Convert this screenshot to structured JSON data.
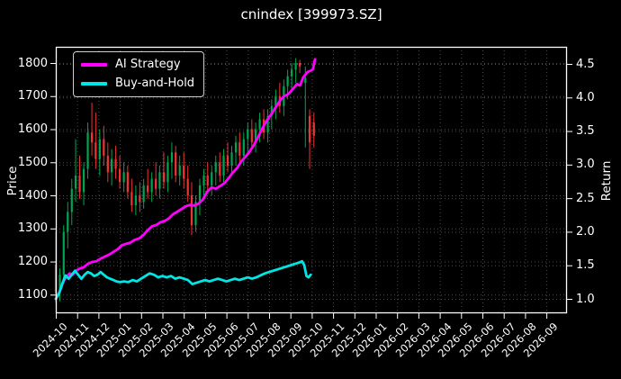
{
  "title": "cnindex [399973.SZ]",
  "legend": [
    {
      "label": "AI Strategy",
      "color": "#ff00ff"
    },
    {
      "label": "Buy-and-Hold",
      "color": "#00e6e6"
    }
  ],
  "left_axis": {
    "label": "Price",
    "ticks": [
      1100,
      1200,
      1300,
      1400,
      1500,
      1600,
      1700,
      1800
    ]
  },
  "right_axis": {
    "label": "Return",
    "ticks": [
      1.0,
      1.5,
      2.0,
      2.5,
      3.0,
      3.5,
      4.0,
      4.5
    ]
  },
  "x_axis": {
    "ticks": [
      "2024-10",
      "2024-11",
      "2024-12",
      "2025-01",
      "2025-02",
      "2025-03",
      "2025-04",
      "2025-05",
      "2025-06",
      "2025-07",
      "2025-08",
      "2025-09",
      "2025-10",
      "2025-11",
      "2025-12",
      "2026-01",
      "2026-02",
      "2026-03",
      "2026-04",
      "2026-05",
      "2026-06",
      "2026-07",
      "2026-08",
      "2026-09"
    ],
    "rotation_deg": 45
  },
  "chart_data": {
    "type": "candlestick+line",
    "title": "cnindex [399973.SZ]",
    "x_unit": "months since 2024-10",
    "price_axis": {
      "label": "Price",
      "ylim": [
        1043,
        1849
      ],
      "grid": true
    },
    "return_axis": {
      "label": "Return",
      "ylim": [
        0.79,
        4.76
      ],
      "grid": true
    },
    "legend_position": "upper left",
    "colors": {
      "up": "#00a550",
      "down": "#f03333",
      "grid": "#4d4d4d",
      "spine": "#ffffff",
      "background": "#000000"
    },
    "candles_ohlc": [
      [
        0.0,
        1190,
        1290,
        1075,
        1105
      ],
      [
        0.19,
        1105,
        1180,
        1080,
        1160
      ],
      [
        0.37,
        1160,
        1310,
        1140,
        1290
      ],
      [
        0.56,
        1290,
        1380,
        1240,
        1350
      ],
      [
        0.75,
        1350,
        1450,
        1310,
        1420
      ],
      [
        0.93,
        1420,
        1570,
        1380,
        1460
      ],
      [
        1.12,
        1460,
        1520,
        1390,
        1410
      ],
      [
        1.31,
        1410,
        1500,
        1370,
        1480
      ],
      [
        1.5,
        1480,
        1620,
        1450,
        1590
      ],
      [
        1.69,
        1590,
        1680,
        1520,
        1560
      ],
      [
        1.87,
        1560,
        1650,
        1480,
        1510
      ],
      [
        2.06,
        1510,
        1600,
        1460,
        1570
      ],
      [
        2.25,
        1570,
        1610,
        1490,
        1520
      ],
      [
        2.44,
        1520,
        1560,
        1440,
        1470
      ],
      [
        2.62,
        1470,
        1540,
        1430,
        1510
      ],
      [
        2.81,
        1510,
        1550,
        1450,
        1480
      ],
      [
        3.0,
        1480,
        1520,
        1420,
        1440
      ],
      [
        3.19,
        1440,
        1500,
        1410,
        1470
      ],
      [
        3.37,
        1470,
        1490,
        1390,
        1410
      ],
      [
        3.56,
        1410,
        1450,
        1350,
        1370
      ],
      [
        3.75,
        1370,
        1430,
        1340,
        1400
      ],
      [
        3.94,
        1400,
        1440,
        1350,
        1380
      ],
      [
        4.12,
        1380,
        1450,
        1360,
        1430
      ],
      [
        4.31,
        1430,
        1480,
        1390,
        1410
      ],
      [
        4.5,
        1410,
        1470,
        1380,
        1450
      ],
      [
        4.69,
        1450,
        1500,
        1400,
        1420
      ],
      [
        4.87,
        1420,
        1490,
        1390,
        1470
      ],
      [
        5.06,
        1470,
        1530,
        1420,
        1440
      ],
      [
        5.25,
        1440,
        1520,
        1410,
        1500
      ],
      [
        5.44,
        1500,
        1560,
        1450,
        1530
      ],
      [
        5.62,
        1530,
        1550,
        1440,
        1460
      ],
      [
        5.81,
        1460,
        1520,
        1430,
        1490
      ],
      [
        6.0,
        1490,
        1530,
        1420,
        1450
      ],
      [
        6.19,
        1450,
        1490,
        1380,
        1400
      ],
      [
        6.37,
        1400,
        1440,
        1280,
        1310
      ],
      [
        6.56,
        1310,
        1400,
        1290,
        1380
      ],
      [
        6.75,
        1380,
        1450,
        1340,
        1430
      ],
      [
        6.94,
        1430,
        1480,
        1390,
        1460
      ],
      [
        7.12,
        1460,
        1500,
        1410,
        1430
      ],
      [
        7.31,
        1430,
        1490,
        1400,
        1470
      ],
      [
        7.5,
        1470,
        1520,
        1430,
        1500
      ],
      [
        7.69,
        1500,
        1530,
        1440,
        1460
      ],
      [
        7.87,
        1460,
        1540,
        1440,
        1520
      ],
      [
        8.06,
        1520,
        1560,
        1470,
        1490
      ],
      [
        8.25,
        1490,
        1550,
        1460,
        1530
      ],
      [
        8.44,
        1530,
        1580,
        1490,
        1560
      ],
      [
        8.62,
        1560,
        1590,
        1500,
        1520
      ],
      [
        8.81,
        1520,
        1590,
        1490,
        1570
      ],
      [
        9.0,
        1570,
        1620,
        1520,
        1600
      ],
      [
        9.19,
        1600,
        1630,
        1540,
        1560
      ],
      [
        9.37,
        1560,
        1620,
        1530,
        1600
      ],
      [
        9.56,
        1600,
        1650,
        1560,
        1630
      ],
      [
        9.75,
        1630,
        1660,
        1570,
        1590
      ],
      [
        9.94,
        1590,
        1660,
        1560,
        1640
      ],
      [
        10.12,
        1640,
        1690,
        1600,
        1670
      ],
      [
        10.31,
        1670,
        1720,
        1630,
        1700
      ],
      [
        10.5,
        1700,
        1740,
        1650,
        1670
      ],
      [
        10.69,
        1670,
        1750,
        1640,
        1730
      ],
      [
        10.87,
        1730,
        1780,
        1690,
        1760
      ],
      [
        11.06,
        1760,
        1800,
        1710,
        1780
      ],
      [
        11.25,
        1780,
        1815,
        1740,
        1800
      ],
      [
        11.44,
        1800,
        1810,
        1770,
        1790
      ],
      [
        11.7,
        1740,
        1790,
        1545,
        1755
      ],
      [
        11.9,
        1640,
        1660,
        1480,
        1560
      ],
      [
        12.1,
        1620,
        1650,
        1545,
        1580
      ]
    ],
    "series": [
      {
        "name": "AI Strategy",
        "color": "#ff00ff",
        "axis": "return",
        "points": [
          [
            0,
            1.0
          ],
          [
            0.2,
            1.12
          ],
          [
            0.35,
            1.25
          ],
          [
            0.5,
            1.33
          ],
          [
            0.65,
            1.38
          ],
          [
            0.8,
            1.36
          ],
          [
            0.95,
            1.42
          ],
          [
            1.1,
            1.45
          ],
          [
            1.3,
            1.47
          ],
          [
            1.5,
            1.52
          ],
          [
            1.7,
            1.55
          ],
          [
            1.9,
            1.56
          ],
          [
            2.1,
            1.6
          ],
          [
            2.3,
            1.63
          ],
          [
            2.5,
            1.66
          ],
          [
            2.7,
            1.7
          ],
          [
            2.9,
            1.74
          ],
          [
            3.1,
            1.8
          ],
          [
            3.3,
            1.82
          ],
          [
            3.5,
            1.84
          ],
          [
            3.7,
            1.88
          ],
          [
            3.9,
            1.9
          ],
          [
            4.1,
            1.95
          ],
          [
            4.3,
            2.02
          ],
          [
            4.5,
            2.08
          ],
          [
            4.7,
            2.1
          ],
          [
            4.9,
            2.14
          ],
          [
            5.1,
            2.16
          ],
          [
            5.3,
            2.2
          ],
          [
            5.5,
            2.26
          ],
          [
            5.7,
            2.3
          ],
          [
            5.9,
            2.34
          ],
          [
            6.1,
            2.38
          ],
          [
            6.3,
            2.4
          ],
          [
            6.5,
            2.39
          ],
          [
            6.7,
            2.42
          ],
          [
            6.9,
            2.48
          ],
          [
            7.1,
            2.6
          ],
          [
            7.3,
            2.66
          ],
          [
            7.5,
            2.64
          ],
          [
            7.7,
            2.68
          ],
          [
            7.9,
            2.72
          ],
          [
            8.1,
            2.8
          ],
          [
            8.3,
            2.88
          ],
          [
            8.5,
            2.95
          ],
          [
            8.7,
            3.05
          ],
          [
            8.9,
            3.12
          ],
          [
            9.1,
            3.2
          ],
          [
            9.3,
            3.3
          ],
          [
            9.5,
            3.42
          ],
          [
            9.7,
            3.55
          ],
          [
            9.9,
            3.66
          ],
          [
            10.1,
            3.75
          ],
          [
            10.3,
            3.85
          ],
          [
            10.5,
            3.95
          ],
          [
            10.7,
            4.02
          ],
          [
            10.9,
            4.05
          ],
          [
            11.1,
            4.12
          ],
          [
            11.3,
            4.2
          ],
          [
            11.45,
            4.18
          ],
          [
            11.6,
            4.3
          ],
          [
            11.8,
            4.38
          ],
          [
            11.95,
            4.4
          ],
          [
            12.05,
            4.42
          ],
          [
            12.15,
            4.57
          ]
        ]
      },
      {
        "name": "Buy-and-Hold",
        "color": "#00e6e6",
        "axis": "return",
        "points": [
          [
            0,
            1.0
          ],
          [
            0.15,
            1.08
          ],
          [
            0.3,
            1.22
          ],
          [
            0.45,
            1.35
          ],
          [
            0.6,
            1.3
          ],
          [
            0.75,
            1.36
          ],
          [
            0.9,
            1.42
          ],
          [
            1.05,
            1.36
          ],
          [
            1.2,
            1.3
          ],
          [
            1.35,
            1.36
          ],
          [
            1.5,
            1.4
          ],
          [
            1.65,
            1.38
          ],
          [
            1.8,
            1.34
          ],
          [
            1.95,
            1.36
          ],
          [
            2.1,
            1.4
          ],
          [
            2.25,
            1.36
          ],
          [
            2.4,
            1.32
          ],
          [
            2.55,
            1.3
          ],
          [
            2.7,
            1.28
          ],
          [
            2.85,
            1.26
          ],
          [
            3.0,
            1.25
          ],
          [
            3.2,
            1.26
          ],
          [
            3.4,
            1.25
          ],
          [
            3.6,
            1.28
          ],
          [
            3.8,
            1.26
          ],
          [
            4.0,
            1.3
          ],
          [
            4.2,
            1.34
          ],
          [
            4.4,
            1.38
          ],
          [
            4.6,
            1.36
          ],
          [
            4.8,
            1.32
          ],
          [
            5.0,
            1.34
          ],
          [
            5.2,
            1.32
          ],
          [
            5.4,
            1.34
          ],
          [
            5.6,
            1.3
          ],
          [
            5.8,
            1.32
          ],
          [
            6.0,
            1.3
          ],
          [
            6.2,
            1.28
          ],
          [
            6.4,
            1.22
          ],
          [
            6.6,
            1.24
          ],
          [
            6.8,
            1.26
          ],
          [
            7.0,
            1.28
          ],
          [
            7.2,
            1.26
          ],
          [
            7.4,
            1.28
          ],
          [
            7.6,
            1.3
          ],
          [
            7.8,
            1.28
          ],
          [
            8.0,
            1.26
          ],
          [
            8.2,
            1.28
          ],
          [
            8.4,
            1.3
          ],
          [
            8.6,
            1.28
          ],
          [
            8.8,
            1.3
          ],
          [
            9.0,
            1.32
          ],
          [
            9.2,
            1.3
          ],
          [
            9.4,
            1.32
          ],
          [
            9.6,
            1.35
          ],
          [
            9.8,
            1.38
          ],
          [
            10.0,
            1.4
          ],
          [
            10.2,
            1.42
          ],
          [
            10.4,
            1.44
          ],
          [
            10.6,
            1.46
          ],
          [
            10.8,
            1.48
          ],
          [
            11.0,
            1.5
          ],
          [
            11.2,
            1.52
          ],
          [
            11.4,
            1.54
          ],
          [
            11.55,
            1.56
          ],
          [
            11.65,
            1.5
          ],
          [
            11.75,
            1.34
          ],
          [
            11.85,
            1.32
          ],
          [
            11.95,
            1.36
          ]
        ]
      }
    ]
  }
}
